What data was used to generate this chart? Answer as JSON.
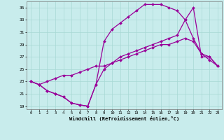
{
  "xlabel": "Windchill (Refroidissement éolien,°C)",
  "background_color": "#c8ecec",
  "grid_color": "#a8d8d4",
  "line_color": "#990099",
  "xlim": [
    -0.5,
    23.5
  ],
  "ylim": [
    18.5,
    36.0
  ],
  "yticks": [
    19,
    21,
    23,
    25,
    27,
    29,
    31,
    33,
    35
  ],
  "xticks": [
    0,
    1,
    2,
    3,
    4,
    5,
    6,
    7,
    8,
    9,
    10,
    11,
    12,
    13,
    14,
    15,
    16,
    17,
    18,
    19,
    20,
    21,
    22,
    23
  ],
  "line1_x": [
    0,
    1,
    2,
    3,
    4,
    5,
    6,
    7,
    8,
    9,
    10,
    11,
    12,
    13,
    14,
    15,
    16,
    17,
    18,
    19,
    20,
    21,
    22,
    23
  ],
  "line1_y": [
    23.0,
    22.5,
    21.5,
    21.0,
    20.5,
    19.5,
    19.2,
    19.0,
    22.5,
    25.0,
    26.0,
    27.0,
    27.5,
    28.0,
    28.5,
    29.0,
    29.5,
    30.0,
    30.5,
    33.0,
    30.0,
    27.5,
    27.0,
    25.5
  ],
  "line2_x": [
    0,
    1,
    2,
    3,
    4,
    5,
    6,
    7,
    8,
    9,
    10,
    11,
    12,
    13,
    14,
    15,
    16,
    17,
    18,
    19,
    20,
    21,
    22,
    23
  ],
  "line2_y": [
    23.0,
    22.5,
    21.5,
    21.0,
    20.5,
    19.5,
    19.2,
    19.0,
    22.5,
    29.5,
    31.5,
    32.5,
    33.5,
    34.5,
    35.5,
    35.5,
    35.5,
    35.0,
    34.5,
    33.0,
    35.0,
    27.0,
    27.0,
    25.5
  ],
  "line3_x": [
    0,
    1,
    2,
    3,
    4,
    5,
    6,
    7,
    8,
    9,
    10,
    11,
    12,
    13,
    14,
    15,
    16,
    17,
    18,
    19,
    20,
    21,
    22,
    23
  ],
  "line3_y": [
    23.0,
    22.5,
    23.0,
    23.5,
    24.0,
    24.0,
    24.5,
    25.0,
    25.5,
    25.5,
    26.0,
    26.5,
    27.0,
    27.5,
    28.0,
    28.5,
    29.0,
    29.0,
    29.5,
    30.0,
    29.5,
    27.5,
    26.5,
    25.5
  ]
}
